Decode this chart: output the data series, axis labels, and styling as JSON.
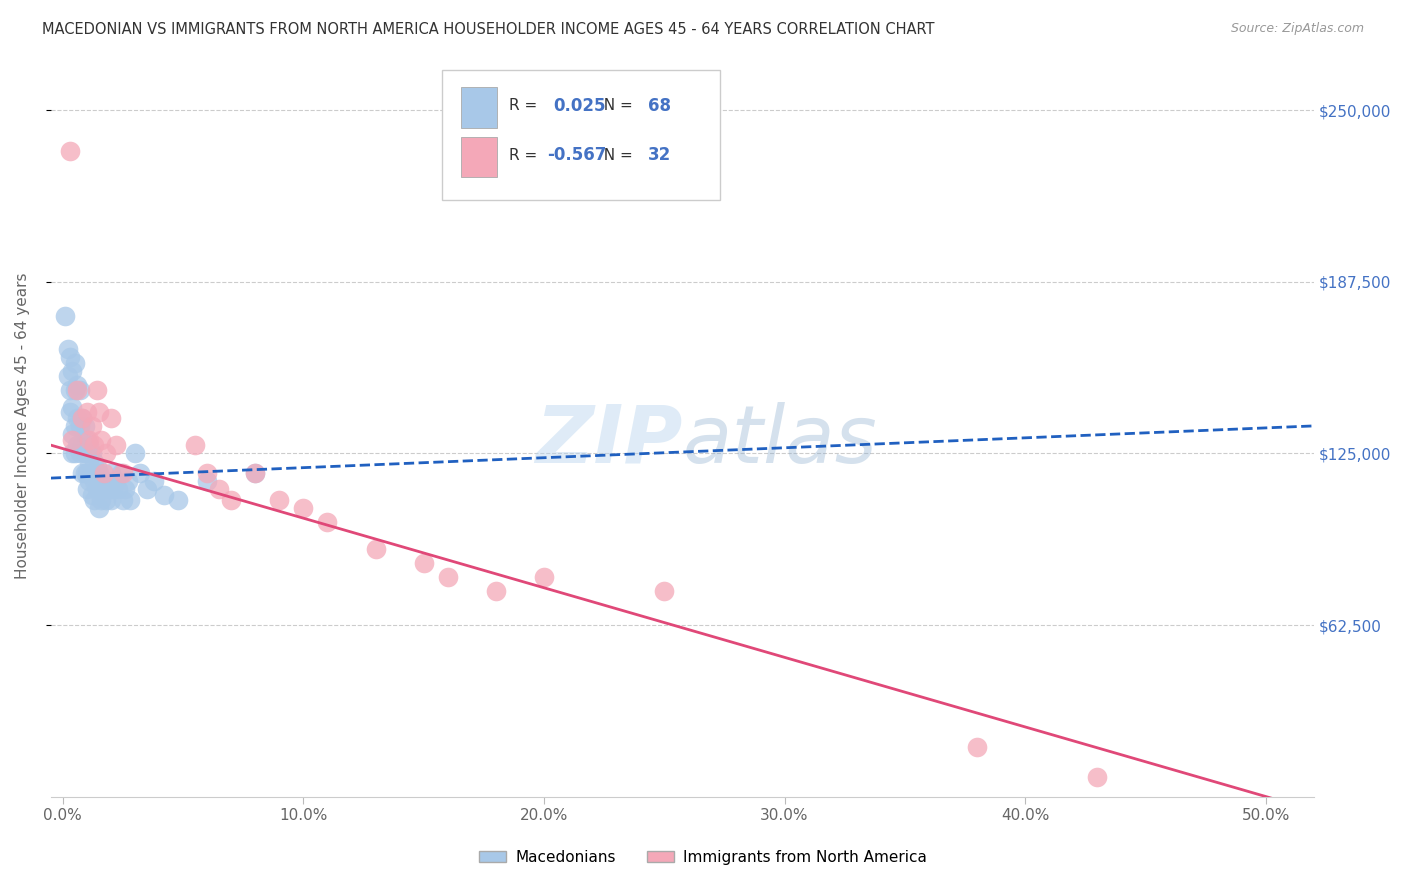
{
  "title": "MACEDONIAN VS IMMIGRANTS FROM NORTH AMERICA HOUSEHOLDER INCOME AGES 45 - 64 YEARS CORRELATION CHART",
  "source": "Source: ZipAtlas.com",
  "ylabel": "Householder Income Ages 45 - 64 years",
  "xlabel_ticks": [
    "0.0%",
    "10.0%",
    "20.0%",
    "30.0%",
    "40.0%",
    "50.0%"
  ],
  "xlabel_vals": [
    0.0,
    0.1,
    0.2,
    0.3,
    0.4,
    0.5
  ],
  "ytick_labels": [
    "$62,500",
    "$125,000",
    "$187,500",
    "$250,000"
  ],
  "ytick_vals": [
    62500,
    125000,
    187500,
    250000
  ],
  "ylim": [
    0,
    270000
  ],
  "xlim": [
    -0.005,
    0.52
  ],
  "blue_R": 0.025,
  "blue_N": 68,
  "pink_R": -0.567,
  "pink_N": 32,
  "blue_color": "#a8c8e8",
  "pink_color": "#f4a8b8",
  "blue_line_color": "#2060c0",
  "pink_line_color": "#e04878",
  "watermark_color": "#c8ddf0",
  "legend_label_blue": "Macedonians",
  "legend_label_pink": "Immigrants from North America",
  "blue_points_x": [
    0.001,
    0.002,
    0.002,
    0.003,
    0.003,
    0.003,
    0.004,
    0.004,
    0.004,
    0.004,
    0.005,
    0.005,
    0.005,
    0.005,
    0.006,
    0.006,
    0.006,
    0.007,
    0.007,
    0.007,
    0.008,
    0.008,
    0.008,
    0.009,
    0.009,
    0.009,
    0.01,
    0.01,
    0.01,
    0.01,
    0.011,
    0.011,
    0.011,
    0.012,
    0.012,
    0.012,
    0.013,
    0.013,
    0.013,
    0.014,
    0.014,
    0.015,
    0.015,
    0.015,
    0.016,
    0.016,
    0.017,
    0.018,
    0.018,
    0.019,
    0.02,
    0.02,
    0.021,
    0.022,
    0.023,
    0.024,
    0.025,
    0.026,
    0.027,
    0.028,
    0.03,
    0.032,
    0.035,
    0.038,
    0.042,
    0.048,
    0.06,
    0.08
  ],
  "blue_points_y": [
    175000,
    163000,
    153000,
    160000,
    148000,
    140000,
    155000,
    142000,
    132000,
    125000,
    158000,
    148000,
    135000,
    125000,
    150000,
    138000,
    128000,
    148000,
    135000,
    125000,
    138000,
    128000,
    118000,
    135000,
    125000,
    118000,
    130000,
    125000,
    118000,
    112000,
    128000,
    122000,
    115000,
    125000,
    118000,
    110000,
    122000,
    115000,
    108000,
    120000,
    112000,
    118000,
    112000,
    105000,
    115000,
    108000,
    112000,
    115000,
    108000,
    112000,
    118000,
    108000,
    112000,
    115000,
    112000,
    118000,
    108000,
    112000,
    115000,
    108000,
    125000,
    118000,
    112000,
    115000,
    110000,
    108000,
    115000,
    118000
  ],
  "pink_points_x": [
    0.003,
    0.004,
    0.006,
    0.008,
    0.01,
    0.011,
    0.012,
    0.013,
    0.014,
    0.015,
    0.016,
    0.017,
    0.018,
    0.02,
    0.022,
    0.025,
    0.055,
    0.06,
    0.065,
    0.07,
    0.08,
    0.09,
    0.1,
    0.11,
    0.13,
    0.15,
    0.16,
    0.18,
    0.2,
    0.25,
    0.38,
    0.43
  ],
  "pink_points_y": [
    235000,
    130000,
    148000,
    138000,
    140000,
    130000,
    135000,
    128000,
    148000,
    140000,
    130000,
    118000,
    125000,
    138000,
    128000,
    118000,
    128000,
    118000,
    112000,
    108000,
    118000,
    108000,
    105000,
    100000,
    90000,
    85000,
    80000,
    75000,
    80000,
    75000,
    18000,
    7000
  ]
}
